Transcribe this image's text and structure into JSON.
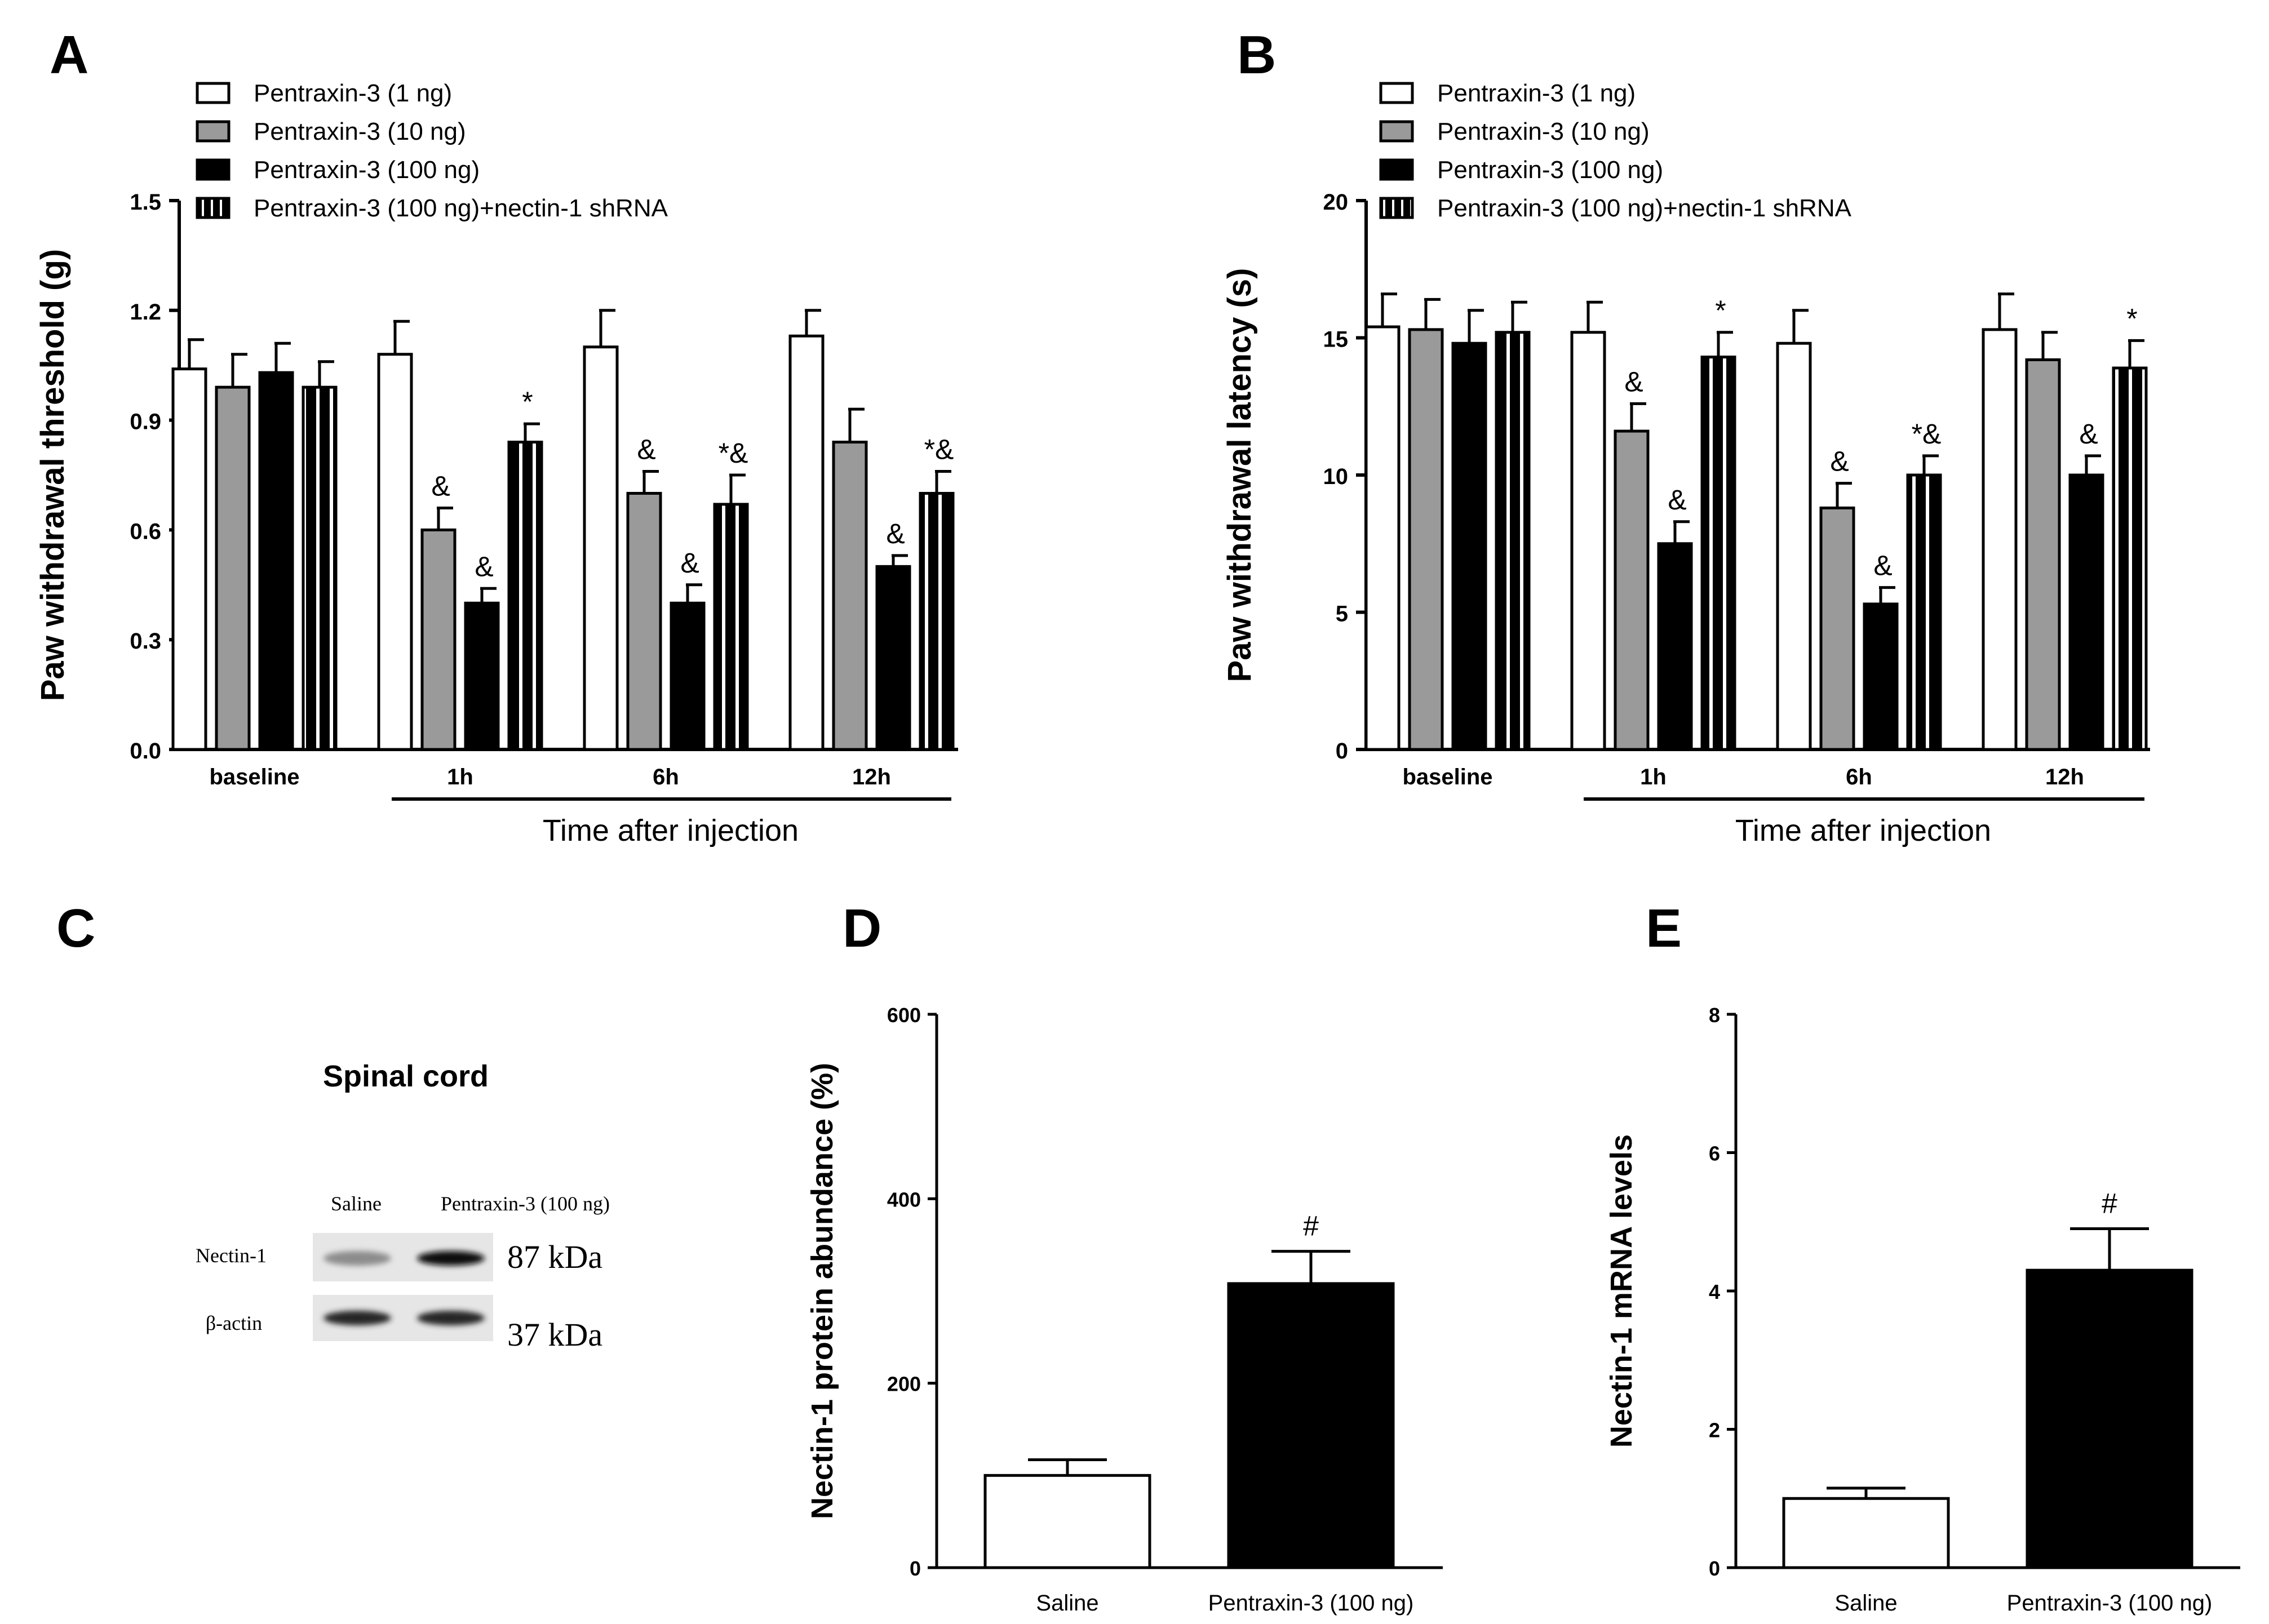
{
  "colors": {
    "white_fill": "#ffffff",
    "gray_fill": "#9a9a9a",
    "black_fill": "#000000",
    "axis": "#000000"
  },
  "chart_data": [
    {
      "panel_label": "A",
      "type": "bar",
      "ylabel": "Paw withdrawal threshold (g)",
      "xlabel": "Time after injection",
      "categories": [
        "baseline",
        "1h",
        "6h",
        "12h"
      ],
      "ylim": [
        0,
        1.5
      ],
      "yticks": [
        "0.0",
        "0.3",
        "0.6",
        "0.9",
        "1.2",
        "1.5"
      ],
      "legend_position": "top-left",
      "series": [
        {
          "name": "Pentraxin-3 (1 ng)",
          "fill": "white",
          "values": [
            1.04,
            1.08,
            1.1,
            1.13
          ],
          "errors": [
            0.08,
            0.09,
            0.1,
            0.07
          ],
          "marks": [
            "",
            "",
            "",
            ""
          ]
        },
        {
          "name": "Pentraxin-3 (10 ng)",
          "fill": "gray",
          "values": [
            0.99,
            0.6,
            0.7,
            0.84
          ],
          "errors": [
            0.09,
            0.06,
            0.06,
            0.09
          ],
          "marks": [
            "",
            "&",
            "&",
            ""
          ]
        },
        {
          "name": "Pentraxin-3 (100 ng)",
          "fill": "black",
          "values": [
            1.03,
            0.4,
            0.4,
            0.5
          ],
          "errors": [
            0.08,
            0.04,
            0.05,
            0.03
          ],
          "marks": [
            "",
            "&",
            "&",
            "&"
          ]
        },
        {
          "name": "Pentraxin-3 (100 ng)+nectin-1 shRNA",
          "fill": "striped",
          "values": [
            0.99,
            0.84,
            0.67,
            0.7
          ],
          "errors": [
            0.07,
            0.05,
            0.08,
            0.06
          ],
          "marks": [
            "",
            "*",
            "*&",
            "*&"
          ]
        }
      ]
    },
    {
      "panel_label": "B",
      "type": "bar",
      "ylabel": "Paw withdrawal latency (s)",
      "xlabel": "Time after injection",
      "categories": [
        "baseline",
        "1h",
        "6h",
        "12h"
      ],
      "ylim": [
        0,
        20
      ],
      "yticks": [
        "0",
        "5",
        "10",
        "15",
        "20"
      ],
      "legend_position": "top-left",
      "series": [
        {
          "name": "Pentraxin-3 (1 ng)",
          "fill": "white",
          "values": [
            15.4,
            15.2,
            14.8,
            15.3
          ],
          "errors": [
            1.2,
            1.1,
            1.2,
            1.3
          ],
          "marks": [
            "",
            "",
            "",
            ""
          ]
        },
        {
          "name": "Pentraxin-3 (10 ng)",
          "fill": "gray",
          "values": [
            15.3,
            11.6,
            8.8,
            14.2
          ],
          "errors": [
            1.1,
            1.0,
            0.9,
            1.0
          ],
          "marks": [
            "",
            "&",
            "&",
            ""
          ]
        },
        {
          "name": "Pentraxin-3 (100 ng)",
          "fill": "black",
          "values": [
            14.8,
            7.5,
            5.3,
            10.0
          ],
          "errors": [
            1.2,
            0.8,
            0.6,
            0.7
          ],
          "marks": [
            "",
            "&",
            "&",
            "&"
          ]
        },
        {
          "name": "Pentraxin-3 (100 ng)+nectin-1 shRNA",
          "fill": "striped",
          "values": [
            15.2,
            14.3,
            10.0,
            13.9
          ],
          "errors": [
            1.1,
            0.9,
            0.7,
            1.0
          ],
          "marks": [
            "",
            "*",
            "*&",
            "*"
          ]
        }
      ]
    },
    {
      "panel_label": "D",
      "type": "bar",
      "ylabel": "Nectin-1 protein abundance (%)",
      "categories": [
        "Saline",
        "Pentraxin-3 (100 ng)"
      ],
      "values": [
        100,
        308
      ],
      "errors": [
        17,
        35
      ],
      "fills": [
        "white",
        "black"
      ],
      "marks": [
        "",
        "#"
      ],
      "ylim": [
        0,
        600
      ],
      "yticks": [
        "0",
        "200",
        "400",
        "600"
      ]
    },
    {
      "panel_label": "E",
      "type": "bar",
      "ylabel": "Nectin-1 mRNA levels",
      "categories": [
        "Saline",
        "Pentraxin-3 (100 ng)"
      ],
      "values": [
        1.0,
        4.3
      ],
      "errors": [
        0.15,
        0.6
      ],
      "fills": [
        "white",
        "black"
      ],
      "marks": [
        "",
        "#"
      ],
      "ylim": [
        0,
        8
      ],
      "yticks": [
        "0",
        "2",
        "4",
        "6",
        "8"
      ]
    }
  ],
  "blot": {
    "panel_label": "C",
    "title": "Spinal cord",
    "lanes": [
      "Saline",
      "Pentraxin-3 (100 ng)"
    ],
    "rows": [
      {
        "label": "Nectin-1",
        "size": "87 kDa",
        "intensity": [
          0.45,
          0.95
        ]
      },
      {
        "label": "β-actin",
        "size": "37 kDa",
        "intensity": [
          0.85,
          0.85
        ]
      }
    ]
  }
}
